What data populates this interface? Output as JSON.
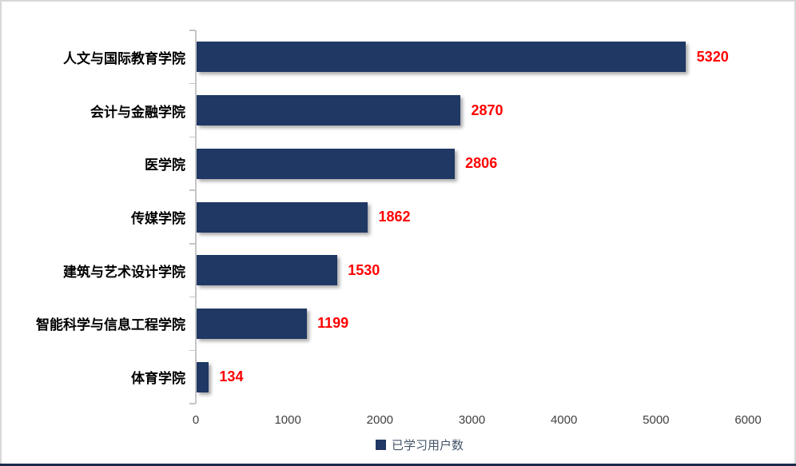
{
  "chart_data": {
    "type": "bar",
    "orientation": "horizontal",
    "title": "",
    "xlabel": "",
    "ylabel": "",
    "categories": [
      "人文与国际教育学院",
      "会计与金融学院",
      "医学院",
      "传媒学院",
      "建筑与艺术设计学院",
      "智能科学与信息工程学院",
      "体育学院"
    ],
    "series": [
      {
        "name": "已学习用户数",
        "values": [
          5320,
          2870,
          2806,
          1862,
          1530,
          1199,
          134
        ]
      }
    ],
    "data_labels": [
      "5320",
      "2870",
      "2806",
      "1862",
      "1530",
      "1199",
      "134"
    ],
    "x_ticks": [
      "0",
      "1000",
      "2000",
      "3000",
      "4000",
      "5000",
      "6000"
    ],
    "xlim": [
      0,
      6000
    ],
    "grid": false,
    "legend_position": "bottom",
    "colors": {
      "bar": "#1f3864",
      "value_label": "#ff0000",
      "axis_line": "#c6c6c6",
      "tick_label": "#404040",
      "category_label": "#000000",
      "legend_text": "#44546a",
      "border": "#d8d8d8",
      "bottom_strip": "#1b2a4a"
    }
  },
  "legend": {
    "marker": "square",
    "label": "已学习用户数"
  }
}
